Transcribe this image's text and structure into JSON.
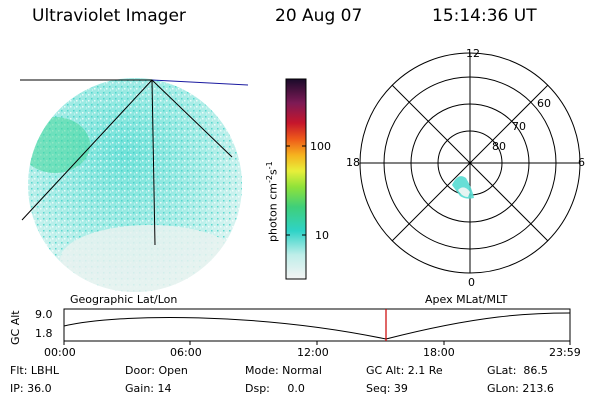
{
  "header": {
    "instrument": "Ultraviolet Imager",
    "date": "20 Aug 07",
    "time": "15:14:36 UT"
  },
  "colorbar": {
    "unit": "photon cm",
    "unit_exp1": "-2",
    "unit_mid": "s",
    "unit_exp2": "-1",
    "ticks": [
      "100",
      "10"
    ]
  },
  "polar": {
    "mlt_labels": [
      "12",
      "18",
      "6",
      "0"
    ],
    "lat_labels": [
      "60",
      "70",
      "80"
    ]
  },
  "timeline": {
    "left_label": "Geographic Lat/Lon",
    "right_label": "Apex  MLat/MLT",
    "y_title": "GC Alt",
    "y_ticks": [
      "9.0",
      "1.8"
    ],
    "x_ticks": [
      "00:00",
      "06:00",
      "12:00",
      "18:00",
      "23:59"
    ],
    "marker_time": "15:14:36"
  },
  "info": {
    "row1": [
      "Flt: LBHL",
      "Door: Open",
      "Mode: Normal",
      "GC Alt: 2.1 Re",
      "GLat:  86.5"
    ],
    "row2": [
      "IP: 36.0",
      "Gain: 14",
      "Dsp:     0.0",
      "Seq: 39",
      "GLon: 213.6"
    ]
  },
  "colors": {
    "accent_marker": "#cc0000",
    "aurora_fill": "#55dcd2",
    "background": "#ffffff"
  }
}
